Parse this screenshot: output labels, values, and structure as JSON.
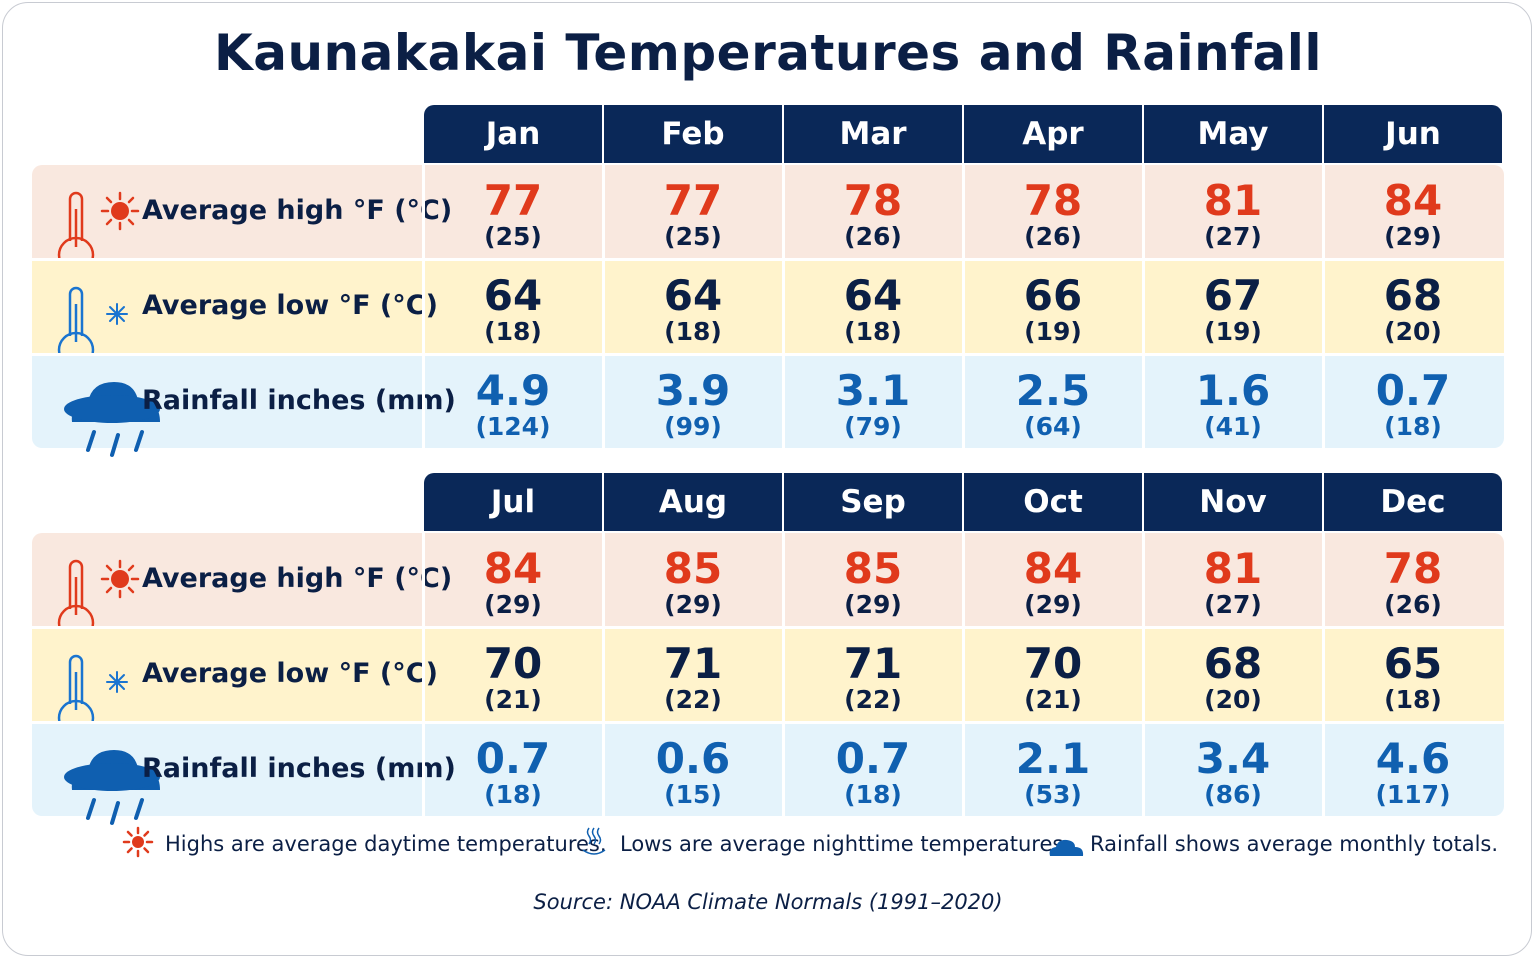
{
  "title": "Kaunakakai Temperatures and Rainfall",
  "source": "Source: NOAA Climate Normals (1991–2020)",
  "colors": {
    "header": "#0a2858",
    "high": "#e03a1c",
    "low": "#0b1f45",
    "rain": "#1060b0",
    "high_bg": "#f9e8df",
    "low_bg": "#fff3cc",
    "rain_bg": "#e4f3fb"
  },
  "row_labels": {
    "high": "Average high °F (°C)",
    "low": "Average low °F (°C)",
    "rain": "Rainfall inches (mm)"
  },
  "row_icons": {
    "high": "thermometer-sun-icon",
    "low": "thermometer-snowflake-icon",
    "rain": "rain-cloud-icon"
  },
  "footnotes": [
    {
      "icon": "sun-icon",
      "text": "Highs are average daytime temperatures."
    },
    {
      "icon": "heat-waves-icon",
      "text": "Lows are average nighttime temperatures."
    },
    {
      "icon": "cloud-icon",
      "text": "Rainfall shows average monthly totals."
    }
  ],
  "chart_data": {
    "type": "table",
    "title": "Kaunakakai Temperatures and Rainfall",
    "columns": [
      "Jan",
      "Feb",
      "Mar",
      "Apr",
      "May",
      "Jun",
      "Jul",
      "Aug",
      "Sep",
      "Oct",
      "Nov",
      "Dec"
    ],
    "rows": [
      {
        "label": "Average high °F (°C)",
        "key": "high",
        "values": [
          "77",
          "77",
          "78",
          "78",
          "81",
          "84",
          "84",
          "85",
          "85",
          "84",
          "81",
          "78"
        ],
        "sub": [
          "(25)",
          "(25)",
          "(26)",
          "(26)",
          "(27)",
          "(29)",
          "(29)",
          "(29)",
          "(29)",
          "(29)",
          "(27)",
          "(26)"
        ]
      },
      {
        "label": "Average low °F (°C)",
        "key": "low",
        "values": [
          "64",
          "64",
          "64",
          "66",
          "67",
          "68",
          "70",
          "71",
          "71",
          "70",
          "68",
          "65"
        ],
        "sub": [
          "(18)",
          "(18)",
          "(18)",
          "(19)",
          "(19)",
          "(20)",
          "(21)",
          "(22)",
          "(22)",
          "(21)",
          "(20)",
          "(18)"
        ]
      },
      {
        "label": "Rainfall inches (mm)",
        "key": "rain",
        "values": [
          "4.9",
          "3.9",
          "3.1",
          "2.5",
          "1.6",
          "0.7",
          "0.7",
          "0.6",
          "0.7",
          "2.1",
          "3.4",
          "4.6"
        ],
        "sub": [
          "(124)",
          "(99)",
          "(79)",
          "(64)",
          "(41)",
          "(18)",
          "(18)",
          "(15)",
          "(18)",
          "(53)",
          "(86)",
          "(117)"
        ]
      }
    ]
  }
}
